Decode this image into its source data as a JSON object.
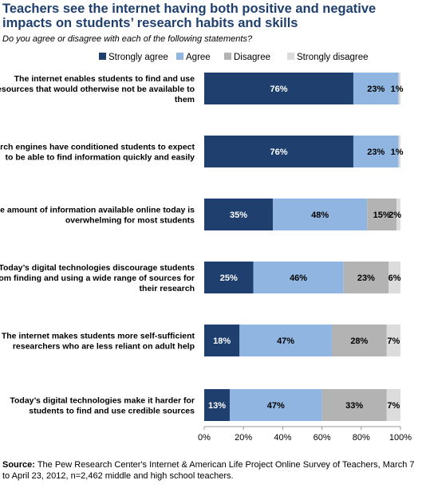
{
  "title": "Teachers see the internet having both positive and negative impacts on students’ research habits and skills",
  "subtitle": "Do you agree or disagree with each of the following statements?",
  "source": {
    "label": "Source:",
    "text": "The Pew Research Center's Internet & American Life Project Online Survey of Teachers, March 7 to April 23, 2012, n=2,462 middle and high school teachers."
  },
  "colors": {
    "strongly_agree": "#1f3f6e",
    "agree": "#8fb5e0",
    "disagree": "#b3b3b3",
    "strongly_disagree": "#dcdcdc"
  },
  "chart_data": {
    "type": "bar",
    "orientation": "horizontal",
    "stacked": true,
    "categories": [
      "The internet enables students to find and use resources that would otherwise not be available to them",
      "Search engines have conditioned students to expect to be able to find information quickly and easily",
      "The amount of information available online today is overwhelming for most students",
      "Today’s digital technologies discourage students from finding and using a wide range of sources for their research",
      "The internet makes students more self-sufficient researchers who are less reliant on adult help",
      "Today’s digital technologies make it harder for students to find and use credible sources"
    ],
    "category_lines": [
      [
        "The internet enables students to find and use",
        "resources that would otherwise not be available to",
        "them"
      ],
      [
        "Search engines have conditioned students to expect",
        "to be able to find information quickly and easily"
      ],
      [
        "The amount of information available online today is",
        "overwhelming for most students"
      ],
      [
        "Today’s digital technologies discourage students",
        "from finding and using a wide range of sources for",
        "their research"
      ],
      [
        "The internet makes students more self-sufficient",
        "researchers who are less reliant on adult help"
      ],
      [
        "Today’s digital technologies make it harder for",
        "students to find and use credible sources"
      ]
    ],
    "series": [
      {
        "name": "Strongly agree",
        "values": [
          76,
          76,
          35,
          25,
          18,
          13
        ]
      },
      {
        "name": "Agree",
        "values": [
          23,
          23,
          48,
          46,
          47,
          47
        ]
      },
      {
        "name": "Disagree",
        "values": [
          0,
          0,
          15,
          23,
          28,
          33
        ]
      },
      {
        "name": "Strongly disagree",
        "values": [
          1,
          1,
          2,
          6,
          7,
          7
        ]
      }
    ],
    "bar_labels": [
      [
        "76%",
        "23%",
        "",
        "1%"
      ],
      [
        "76%",
        "23%",
        "",
        "1%"
      ],
      [
        "35%",
        "48%",
        "15%",
        "2%"
      ],
      [
        "25%",
        "46%",
        "23%",
        "6%"
      ],
      [
        "18%",
        "47%",
        "28%",
        "7%"
      ],
      [
        "13%",
        "47%",
        "33%",
        "7%"
      ]
    ],
    "x_ticks": [
      "0%",
      "20%",
      "40%",
      "60%",
      "80%",
      "100%"
    ],
    "xlim": [
      0,
      100
    ],
    "legend_position": "top",
    "grid": false
  }
}
